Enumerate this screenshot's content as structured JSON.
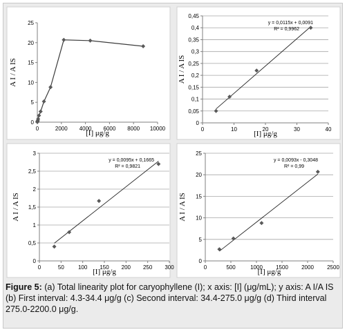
{
  "caption": {
    "label": "Figure 5:",
    "text": " (a) Total linearity plot for caryophyllene (I); x axis: [I] (μg/mL); y axis: A I/A IS (b) First interval: 4.3-34.4 μg/g (c) Second interval: 34.4-275.0 μg/g (d) Third interval 275.0-2200.0 μg/g."
  },
  "chart_data": [
    {
      "id": "a",
      "type": "line",
      "xlabel": "[I] μg/g",
      "ylabel": "A I / A IS",
      "xlim": [
        0,
        10000
      ],
      "ylim": [
        0,
        25
      ],
      "xticks": [
        0,
        2000,
        4000,
        6000,
        8000,
        10000
      ],
      "yticks": [
        0,
        5,
        10,
        15,
        20,
        25
      ],
      "grid": false,
      "series": [
        {
          "x": [
            4.3,
            8.6,
            17.2,
            34.4,
            68.8,
            137.5,
            275,
            550,
            1100,
            2200,
            4400,
            8800
          ],
          "y": [
            0.05,
            0.11,
            0.22,
            0.4,
            0.8,
            1.67,
            2.7,
            5.2,
            8.8,
            20.7,
            20.5,
            19.1
          ]
        }
      ]
    },
    {
      "id": "b",
      "type": "scatter",
      "xlabel": "[I] μg/g",
      "ylabel": "A I / A IS",
      "xlim": [
        0,
        40
      ],
      "ylim": [
        0,
        0.45
      ],
      "xticks": [
        0,
        10,
        20,
        30,
        40
      ],
      "yticks": [
        0,
        0.05,
        0.1,
        0.15,
        0.2,
        0.25,
        0.3,
        0.35,
        0.4,
        0.45
      ],
      "ytick_labels": [
        "0",
        "0,05",
        "0,1",
        "0,15",
        "0,2",
        "0,25",
        "0,3",
        "0,35",
        "0,4",
        "0,45"
      ],
      "grid": true,
      "points": {
        "x": [
          4.3,
          8.6,
          17.2,
          34.4
        ],
        "y": [
          0.05,
          0.11,
          0.22,
          0.4
        ]
      },
      "trendline": {
        "slope": 0.0115,
        "intercept": 0.0091
      },
      "equation": "y = 0,0115x + 0,0091",
      "r2": "R² = 0,9962"
    },
    {
      "id": "c",
      "type": "scatter",
      "xlabel": "[I] μg/g",
      "ylabel": "A I / A IS",
      "xlim": [
        0,
        300
      ],
      "ylim": [
        0,
        3
      ],
      "xticks": [
        0,
        50,
        100,
        150,
        200,
        250,
        300
      ],
      "yticks": [
        0,
        0.5,
        1,
        1.5,
        2,
        2.5,
        3
      ],
      "ytick_labels": [
        "0",
        "0,5",
        "1",
        "1,5",
        "2",
        "2,5",
        "3"
      ],
      "grid": true,
      "points": {
        "x": [
          34.4,
          68.8,
          137.5,
          275
        ],
        "y": [
          0.4,
          0.8,
          1.67,
          2.7
        ]
      },
      "trendline": {
        "slope": 0.0095,
        "intercept": 0.1665
      },
      "equation": "y = 0,0095x + 0,1665",
      "r2": "R² = 0,9821"
    },
    {
      "id": "d",
      "type": "scatter",
      "xlabel": "[I] μg/g",
      "ylabel": "A I / A IS",
      "xlim": [
        0,
        2500
      ],
      "ylim": [
        0,
        25
      ],
      "xticks": [
        0,
        500,
        1000,
        1500,
        2000,
        2500
      ],
      "yticks": [
        0,
        5,
        10,
        15,
        20,
        25
      ],
      "grid": true,
      "points": {
        "x": [
          275,
          550,
          1100,
          2200
        ],
        "y": [
          2.7,
          5.2,
          8.8,
          20.7
        ]
      },
      "trendline": {
        "slope": 0.0093,
        "intercept": -0.3048
      },
      "equation": "y = 0,0093x - 0,3048",
      "r2": "R² = 0,99"
    }
  ]
}
